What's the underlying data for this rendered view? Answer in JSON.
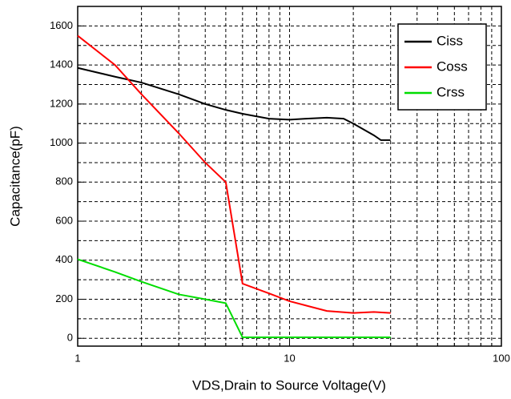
{
  "chart_data": {
    "type": "line",
    "xlabel": "VDS,Drain to Source Voltage(V)",
    "ylabel": "Capacitance(pF)",
    "xscale": "log",
    "xlim": [
      1,
      100
    ],
    "ylim": [
      -40,
      1700
    ],
    "xticks": [
      1,
      10,
      100
    ],
    "xminorticks": [
      2,
      3,
      4,
      5,
      6,
      7,
      8,
      9,
      20,
      30,
      40,
      50,
      60,
      70,
      80,
      90
    ],
    "yticks": [
      0,
      200,
      400,
      600,
      800,
      1000,
      1200,
      1400,
      1600
    ],
    "yminorticks": [
      100,
      300,
      500,
      700,
      900,
      1100,
      1300,
      1500
    ],
    "grid": true,
    "legend": "upper right",
    "series": [
      {
        "name": "Ciss",
        "color": "#000000",
        "x": [
          1,
          1.5,
          2,
          3,
          4,
          5,
          6,
          8,
          10,
          12,
          15,
          18,
          20,
          25,
          27,
          30
        ],
        "values": [
          1385,
          1340,
          1310,
          1250,
          1200,
          1170,
          1150,
          1125,
          1120,
          1125,
          1130,
          1125,
          1100,
          1040,
          1015,
          1015
        ]
      },
      {
        "name": "Coss",
        "color": "#ff0000",
        "x": [
          1,
          1.5,
          2,
          3,
          4,
          5,
          6,
          8,
          10,
          15,
          20,
          25,
          30
        ],
        "values": [
          1550,
          1400,
          1250,
          1050,
          900,
          800,
          280,
          230,
          190,
          140,
          130,
          135,
          130
        ]
      },
      {
        "name": "Crss",
        "color": "#00dd00",
        "x": [
          1,
          1.5,
          2,
          3,
          4,
          5,
          6,
          10,
          20,
          30
        ],
        "values": [
          405,
          340,
          290,
          225,
          200,
          180,
          5,
          5,
          5,
          5
        ]
      }
    ]
  }
}
